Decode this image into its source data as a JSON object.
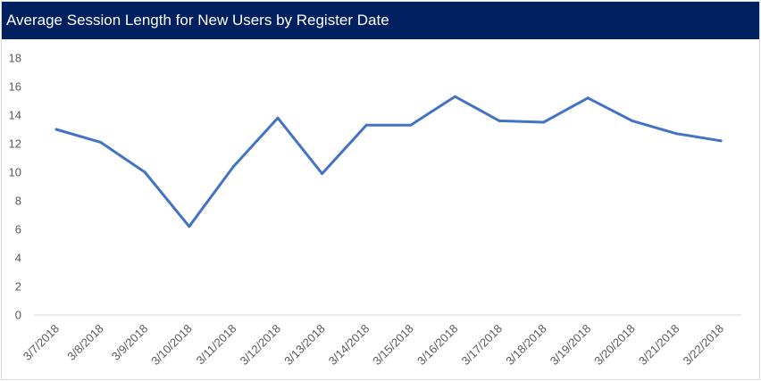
{
  "colors": {
    "title_bg": "#002060",
    "title_text": "#ffffff",
    "line": "#4472c4",
    "axis": "#d9d9d9",
    "tick_text": "#595959"
  },
  "chart_data": {
    "type": "line",
    "title": "Average Session Length for New Users by Register Date",
    "xlabel": "",
    "ylabel": "",
    "ylim": [
      0,
      18
    ],
    "yticks": [
      0,
      2,
      4,
      6,
      8,
      10,
      12,
      14,
      16,
      18
    ],
    "grid": false,
    "legend": "none",
    "categories": [
      "3/7/2018",
      "3/8/2018",
      "3/9/2018",
      "3/10/2018",
      "3/11/2018",
      "3/12/2018",
      "3/13/2018",
      "3/14/2018",
      "3/15/2018",
      "3/16/2018",
      "3/17/2018",
      "3/18/2018",
      "3/19/2018",
      "3/20/2018",
      "3/21/2018",
      "3/22/2018"
    ],
    "series": [
      {
        "values": [
          13.0,
          12.1,
          10.0,
          6.2,
          10.4,
          13.8,
          9.9,
          13.3,
          13.3,
          15.3,
          13.6,
          13.5,
          15.2,
          13.6,
          12.7,
          12.2
        ]
      }
    ]
  }
}
